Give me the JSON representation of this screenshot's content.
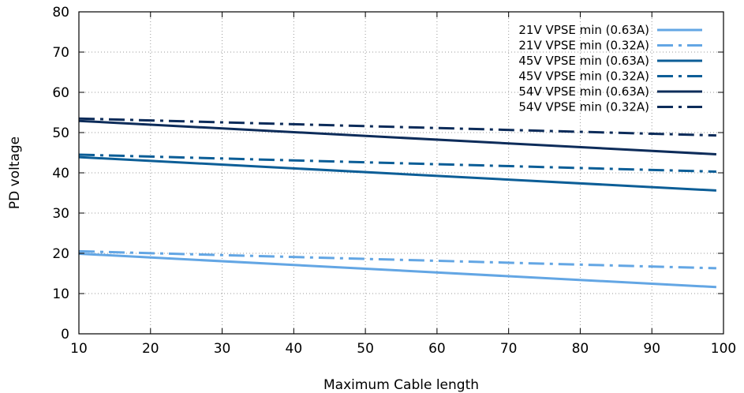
{
  "chart_data": {
    "type": "line",
    "title": "",
    "xlabel": "Maximum Cable length",
    "ylabel": "PD voltage",
    "xlim": [
      10,
      100
    ],
    "ylim": [
      0,
      80
    ],
    "xticks": [
      10,
      20,
      30,
      40,
      50,
      60,
      70,
      80,
      90,
      100
    ],
    "yticks": [
      0,
      10,
      20,
      30,
      40,
      50,
      60,
      70,
      80
    ],
    "grid": true,
    "legend_position": "top-right",
    "series": [
      {
        "name": "21V VPSE min (0.63A)",
        "color": "#63a6e4",
        "dash": "solid",
        "x": [
          10,
          99
        ],
        "y": [
          19.9,
          11.6
        ]
      },
      {
        "name": "21V VPSE min (0.32A)",
        "color": "#63a6e4",
        "dash": "dashdot",
        "x": [
          10,
          99
        ],
        "y": [
          20.5,
          16.3
        ]
      },
      {
        "name": "45V VPSE min (0.63A)",
        "color": "#0c5e97",
        "dash": "solid",
        "x": [
          10,
          99
        ],
        "y": [
          43.9,
          35.6
        ]
      },
      {
        "name": "45V VPSE min (0.32A)",
        "color": "#0c5e97",
        "dash": "dashdot",
        "x": [
          10,
          99
        ],
        "y": [
          44.5,
          40.3
        ]
      },
      {
        "name": "54V VPSE min (0.63A)",
        "color": "#0d2c5a",
        "dash": "solid",
        "x": [
          10,
          99
        ],
        "y": [
          52.9,
          44.6
        ]
      },
      {
        "name": "54V VPSE min (0.32A)",
        "color": "#0d2c5a",
        "dash": "dashdot",
        "x": [
          10,
          99
        ],
        "y": [
          53.5,
          49.3
        ]
      }
    ]
  }
}
